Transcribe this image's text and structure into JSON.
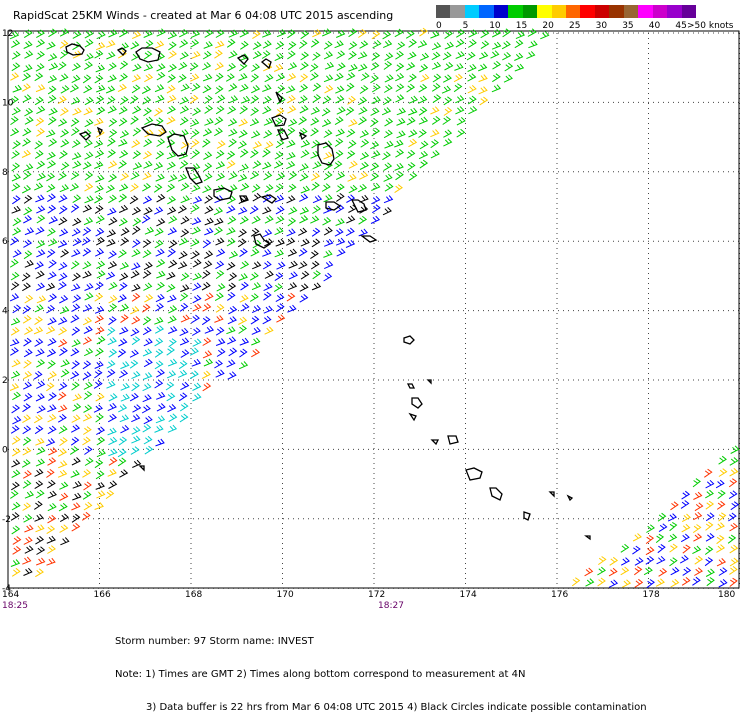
{
  "title": "RapidScat 25KM Winds - created at Mar  6 04:08 UTC 2015 ascending",
  "colorbar": {
    "units": ">50 knots",
    "labels": [
      "0",
      "5",
      "10",
      "15",
      "20",
      "25",
      "30",
      "35",
      "40",
      "45"
    ],
    "colors": [
      "#555555",
      "#999999",
      "#00ccff",
      "#0066ff",
      "#0000cc",
      "#00cc00",
      "#009900",
      "#ffff00",
      "#ffcc00",
      "#ff6600",
      "#ff0000",
      "#cc0000",
      "#993300",
      "#996633",
      "#ff00ff",
      "#cc00cc",
      "#9900cc",
      "#660099"
    ]
  },
  "axes": {
    "x_ticks": [
      "164",
      "166",
      "168",
      "170",
      "172",
      "174",
      "176",
      "178",
      "180"
    ],
    "y_ticks": [
      "12",
      "10",
      "8",
      "6",
      "4",
      "2",
      "0",
      "-2",
      "-4"
    ]
  },
  "times": {
    "left": "18:25",
    "middle": "18:27"
  },
  "notes": {
    "storm": "Storm number: 97    Storm name: INVEST",
    "line1": "Note: 1) Times are GMT  2) Times along bottom correspond to measurement at 4N",
    "line2": "3) Data buffer is 22 hrs from Mar  6 04:08 UTC 2015  4) Black Circles indicate possible contamination"
  },
  "colors": {
    "wind_green": "#00cc00",
    "wind_yellow": "#ffcc00",
    "wind_blue": "#0000ff",
    "wind_cyan": "#00cccc",
    "wind_red": "#ff3300",
    "land": "#000000"
  }
}
